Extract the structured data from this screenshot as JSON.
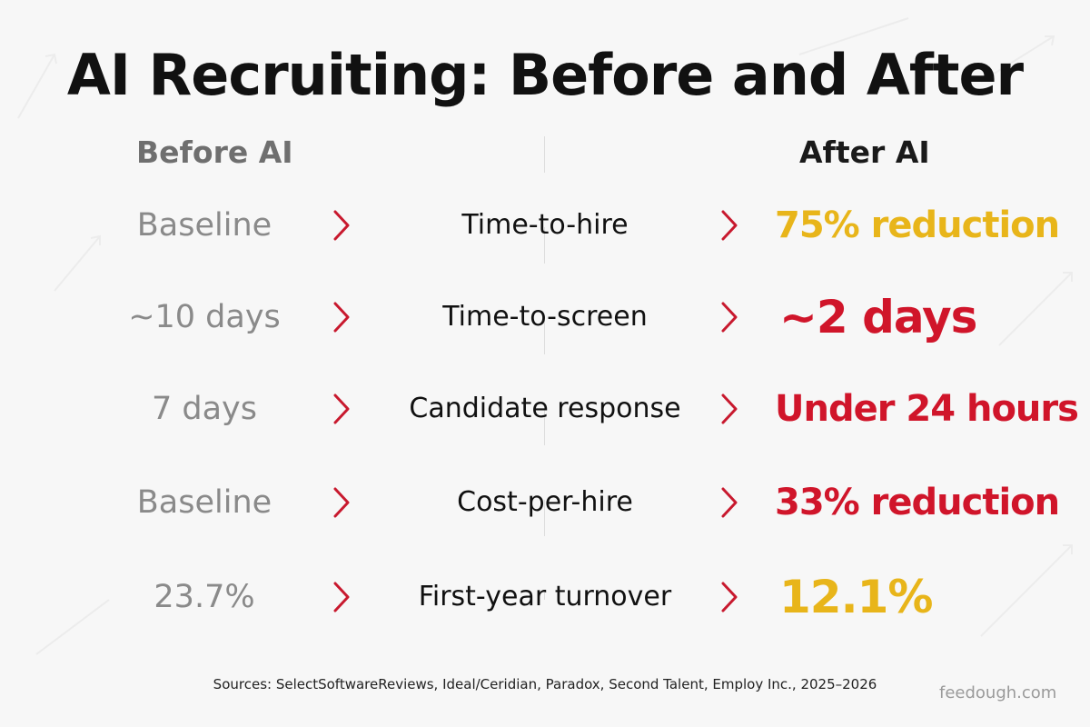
{
  "title": "AI Recruiting: Before and After",
  "columns": {
    "before": "Before AI",
    "after": "After AI"
  },
  "rows": [
    {
      "before": "Baseline",
      "metric": "Time-to-hire",
      "after": "75% reduction",
      "after_color": "#e8b51a"
    },
    {
      "before": "~10 days",
      "metric": "Time-to-screen",
      "after": "~2 days",
      "after_color": "#d0152a"
    },
    {
      "before": "7 days",
      "metric": "Candidate response",
      "after": "Under 24 hours",
      "after_color": "#d0152a"
    },
    {
      "before": "Baseline",
      "metric": "Cost-per-hire",
      "after": "33% reduction",
      "after_color": "#d0152a"
    },
    {
      "before": "23.7%",
      "metric": "First-year turnover",
      "after": "12.1%",
      "after_color": "#e8b51a"
    }
  ],
  "icons": {
    "row_arrow": "chevron-right-icon"
  },
  "colors": {
    "accent_red": "#d0152a",
    "accent_yellow": "#e8b51a",
    "chevron": "#c8192e"
  },
  "sources": "Sources: SelectSoftwareReviews, Ideal/Ceridian, Paradox, Second Talent, Employ Inc., 2025–2026",
  "brand": "feedough.com"
}
